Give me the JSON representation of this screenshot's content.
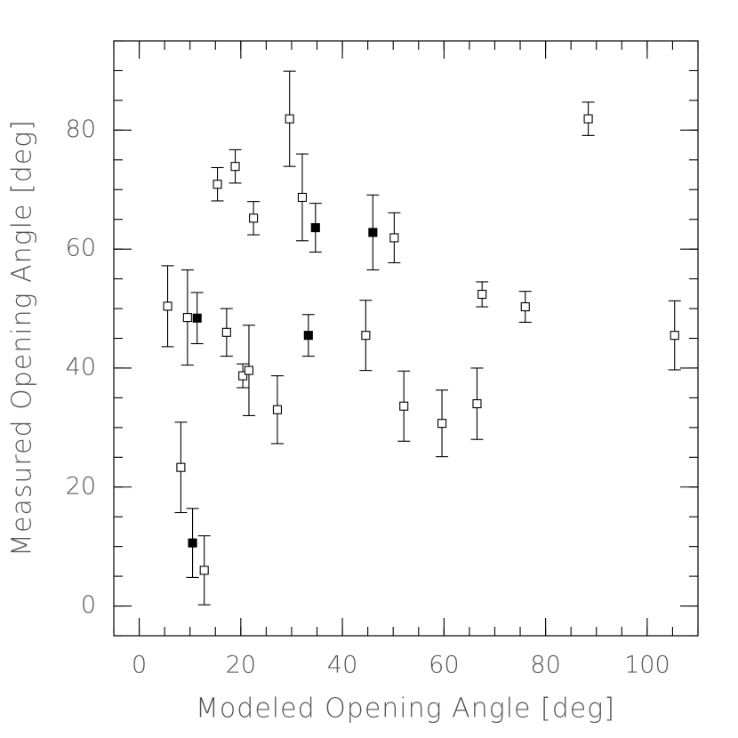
{
  "chart_data": {
    "type": "scatter",
    "x_label": "Modeled Opening Angle [deg]",
    "y_label": "Measured Opening Angle [deg]",
    "xlim": [
      -5,
      110
    ],
    "ylim": [
      -5,
      95
    ],
    "xticks": [
      0,
      20,
      40,
      60,
      80,
      100
    ],
    "yticks": [
      0,
      20,
      40,
      60,
      80
    ],
    "xminor_step": 5,
    "yminor_step": 5,
    "series": [
      {
        "marker": "open-square",
        "color": "#000000",
        "x": [
          5.6,
          9.5,
          8.2,
          12.8,
          15.4,
          17.2,
          18.9,
          20.4,
          21.6,
          22.5,
          27.2,
          29.6,
          32.1,
          44.6,
          50.2,
          52.1,
          59.6,
          66.5,
          67.5,
          76.0,
          88.4,
          105.4
        ],
        "values": [
          50.4,
          48.5,
          23.3,
          6.0,
          70.9,
          46.0,
          73.9,
          38.7,
          39.6,
          65.2,
          33.0,
          81.9,
          68.7,
          45.5,
          61.9,
          33.6,
          30.7,
          34.0,
          52.4,
          50.3,
          81.9,
          45.5
        ],
        "errors": [
          6.8,
          8.0,
          7.6,
          5.8,
          2.8,
          4.0,
          2.8,
          2.0,
          7.6,
          2.8,
          5.7,
          8.0,
          7.3,
          5.9,
          4.2,
          5.9,
          5.6,
          6.0,
          2.1,
          2.6,
          2.8,
          5.8
        ]
      },
      {
        "marker": "filled-square",
        "color": "#000000",
        "x": [
          10.5,
          11.4,
          33.3,
          34.7,
          46.0
        ],
        "values": [
          10.6,
          48.4,
          45.5,
          63.6,
          62.8
        ],
        "errors": [
          5.8,
          4.3,
          3.5,
          4.1,
          6.3
        ]
      }
    ]
  }
}
